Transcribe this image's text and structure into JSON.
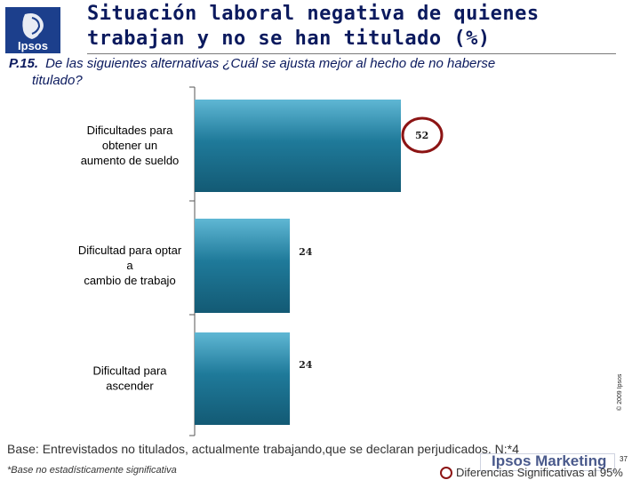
{
  "header": {
    "logo_text": "Ipsos",
    "title_line1": "Situación laboral negativa de quienes",
    "title_line2": "trabajan y no se han titulado (%)"
  },
  "question": {
    "number": "P.15.",
    "text_line1": "De las siguientes alternativas ¿Cuál se ajusta mejor al hecho de no haberse",
    "text_line2": "titulado?"
  },
  "chart_data": {
    "type": "bar",
    "orientation": "horizontal",
    "categories": [
      [
        "Dificultades para",
        "obtener un",
        "aumento de sueldo"
      ],
      [
        "Dificultad para optar",
        "a",
        "cambio de trabajo"
      ],
      [
        "Dificultad para",
        "ascender"
      ]
    ],
    "values": [
      52,
      24,
      24
    ],
    "value_labels": [
      "52",
      "24",
      "24"
    ],
    "highlighted": [
      true,
      false,
      false
    ],
    "xlim": [
      0,
      100
    ],
    "bar_color": "#1f7a9a",
    "highlight_color": "#8c1414"
  },
  "footer": {
    "copyright": "© 2009 Ipsos",
    "base": "Base: Entrevistados no titulados, actualmente trabajando,que se declaran perjudicados. N:*4",
    "footnote": "*Base no estadísticamente significativa",
    "brand": "Ipsos Marketing",
    "page_number": "37",
    "significance_note": "Diferencias Significativas al 95%"
  }
}
